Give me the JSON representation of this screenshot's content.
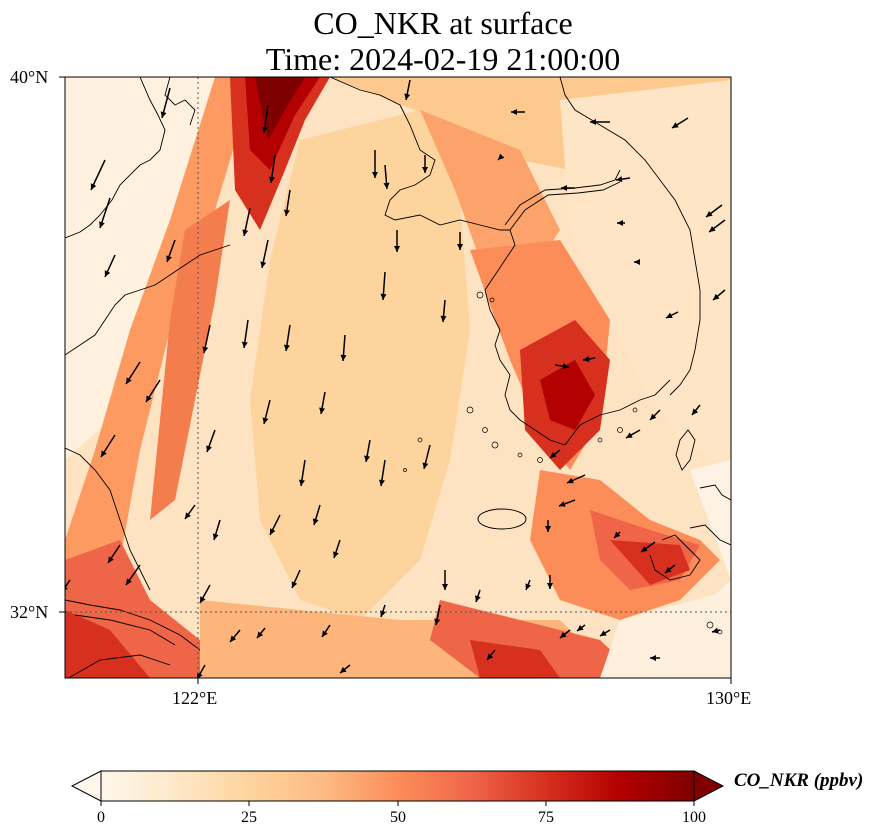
{
  "title": {
    "line1": "CO_NKR at surface",
    "line2": "Time: 2024-02-19 21:00:00"
  },
  "map": {
    "lat_ticks": [
      {
        "label": "40°N",
        "value": 40
      },
      {
        "label": "32°N",
        "value": 32
      }
    ],
    "lon_ticks": [
      {
        "label": "122°E",
        "value": 122
      },
      {
        "label": "130°E",
        "value": 130
      }
    ],
    "extent": {
      "lon_min": 120,
      "lon_max": 130,
      "lat_min": 31,
      "lat_max": 40
    },
    "gridlines": "dotted",
    "variable": "CO_NKR",
    "units": "ppbv"
  },
  "colorbar": {
    "label": "CO_NKR (ppbv)",
    "ticks": [
      "0",
      "25",
      "50",
      "75",
      "100"
    ],
    "min": 0,
    "max": 100,
    "extend": "both",
    "colormap": "OrRd",
    "colors": [
      "#fff7ec",
      "#fee8c8",
      "#fdd49e",
      "#fdbb84",
      "#fc8d59",
      "#ef6548",
      "#d7301f",
      "#b30000",
      "#7f0000"
    ]
  }
}
